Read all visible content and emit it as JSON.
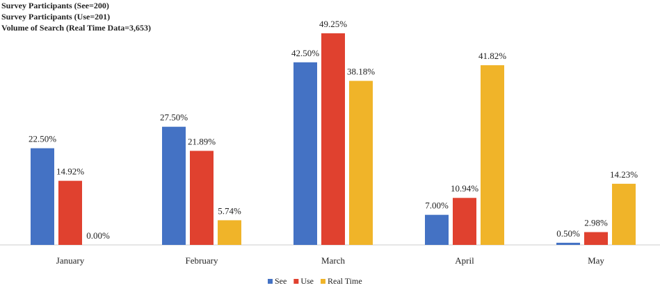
{
  "chart_data": {
    "type": "bar",
    "annotations": [
      "Survey Participants (See=200)",
      "Survey Participants (Use=201)",
      "Volume of Search (Real Time Data=3,653)"
    ],
    "categories": [
      "January",
      "February",
      "March",
      "April",
      "May"
    ],
    "series": [
      {
        "name": "See",
        "color": "#4472c4",
        "values": [
          22.5,
          27.5,
          42.5,
          7,
          0.5
        ],
        "value_labels": [
          "22.50%",
          "27.50%",
          "42.50%",
          "7.00%",
          "0.50%"
        ]
      },
      {
        "name": "Use",
        "color": "#e0412f",
        "values": [
          14.92,
          21.89,
          49.25,
          10.94,
          2.98
        ],
        "value_labels": [
          "14.92%",
          "21.89%",
          "49.25%",
          "10.94%",
          "2.98%"
        ]
      },
      {
        "name": "Real Time",
        "color": "#f0b429",
        "values": [
          0,
          5.74,
          38.18,
          41.82,
          14.23
        ],
        "value_labels": [
          "0.00%",
          "5.74%",
          "38.18%",
          "41.82%",
          "14.23%"
        ]
      }
    ],
    "legend": "bottom"
  }
}
